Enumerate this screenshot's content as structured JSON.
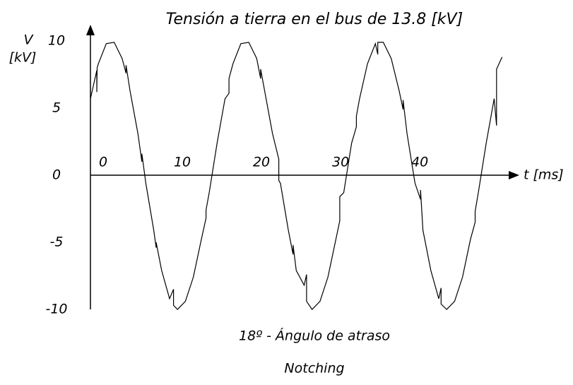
{
  "chart_data": {
    "type": "line",
    "title": "Tensión a tierra en el bus de 13.8 [kV]",
    "y_label": [
      "V",
      "[kV]"
    ],
    "x_label": "t [ms]",
    "subtitle": "18º - Ángulo de atraso",
    "annotation": "Notching",
    "xlim": [
      0,
      54
    ],
    "ylim": [
      -10,
      10
    ],
    "xticks": [
      0,
      10,
      20,
      30,
      40
    ],
    "yticks": [
      10,
      5,
      0,
      -5,
      -10
    ],
    "grid": false,
    "series": [
      {
        "name": null,
        "color": "#000000",
        "x": [
          0,
          0.8,
          0.8,
          0.85,
          1,
          2,
          3,
          4,
          4.5,
          4.5,
          5,
          6,
          6.5,
          6.5,
          7,
          8,
          8.3,
          8.3,
          9,
          10,
          10.5,
          10.5,
          11,
          12,
          13,
          14,
          14.6,
          14.6,
          15,
          16,
          17,
          17.5,
          17.5,
          18,
          19,
          20,
          21,
          21.5,
          21.5,
          22,
          23,
          23.8,
          23.8,
          24,
          25,
          25.6,
          25.6,
          26,
          27,
          27.3,
          27.3,
          28,
          29,
          30,
          31,
          31.5,
          31.5,
          32,
          33,
          33.6,
          33.6,
          34,
          35,
          36,
          36.3,
          36.3,
          37,
          38,
          39,
          39.5,
          39.5,
          40,
          41,
          41.7,
          41.7,
          42,
          43,
          44,
          44.3,
          44.3,
          45,
          46,
          47,
          48,
          48.6,
          48.6,
          49,
          50,
          51,
          51.3,
          51.3,
          52
        ],
        "values": [
          5.7,
          7.8,
          6.2,
          8.0,
          8.3,
          9.8,
          9.9,
          8.7,
          7.6,
          8.2,
          6.3,
          3.1,
          1.0,
          1.6,
          -0.6,
          -4.1,
          -5.4,
          -5.0,
          -7.1,
          -9.2,
          -8.5,
          -9.7,
          -10.0,
          -9.4,
          -7.6,
          -4.8,
          -3.2,
          -2.6,
          -1.3,
          2.4,
          5.7,
          6.1,
          7.2,
          8.3,
          9.8,
          9.9,
          8.7,
          7.2,
          7.9,
          6.3,
          3.1,
          1.2,
          -0.4,
          -0.6,
          -4.1,
          -5.9,
          -5.2,
          -7.1,
          -8.2,
          -7.4,
          -9.4,
          -10.0,
          -9.4,
          -7.6,
          -4.8,
          -3.4,
          -1.6,
          -1.3,
          2.4,
          3.6,
          4.4,
          5.7,
          8.3,
          9.8,
          9.0,
          9.9,
          9.9,
          8.7,
          6.3,
          4.9,
          5.6,
          3.1,
          -0.6,
          -1.8,
          -1.1,
          -4.1,
          -7.1,
          -9.2,
          -8.4,
          -9.6,
          -10.0,
          -9.4,
          -7.6,
          -4.8,
          -3.5,
          -2.7,
          -1.3,
          2.4,
          5.7,
          3.7,
          7.9,
          8.8
        ]
      }
    ]
  }
}
